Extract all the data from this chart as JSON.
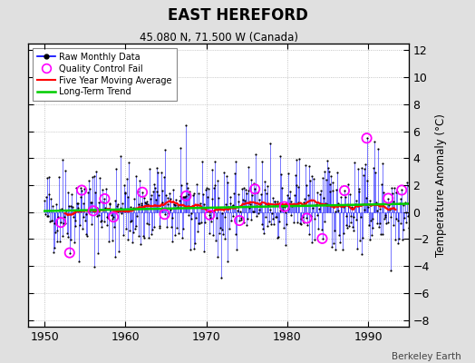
{
  "title": "EAST HEREFORD",
  "subtitle": "45.080 N, 71.500 W (Canada)",
  "ylabel": "Temperature Anomaly (°C)",
  "credit": "Berkeley Earth",
  "xlim": [
    1948,
    1995
  ],
  "ylim": [
    -8.5,
    12.5
  ],
  "yticks": [
    -8,
    -6,
    -4,
    -2,
    0,
    2,
    4,
    6,
    8,
    10,
    12
  ],
  "xticks": [
    1950,
    1960,
    1970,
    1980,
    1990
  ],
  "fig_bg_color": "#e0e0e0",
  "plot_bg_color": "#ffffff",
  "line_color": "#0000ff",
  "dot_color": "#000000",
  "ma_color": "#ff0000",
  "trend_color": "#00cc00",
  "qc_color": "#ff00ff",
  "seed": 42,
  "n_months": 552,
  "start_year": 1950,
  "trend_slope": 0.012,
  "trend_intercept": 0.08,
  "qc_indices": [
    24,
    37,
    55,
    72,
    89,
    102,
    145,
    178,
    210,
    245,
    289,
    312,
    356,
    389,
    412,
    445,
    478,
    510,
    530
  ]
}
